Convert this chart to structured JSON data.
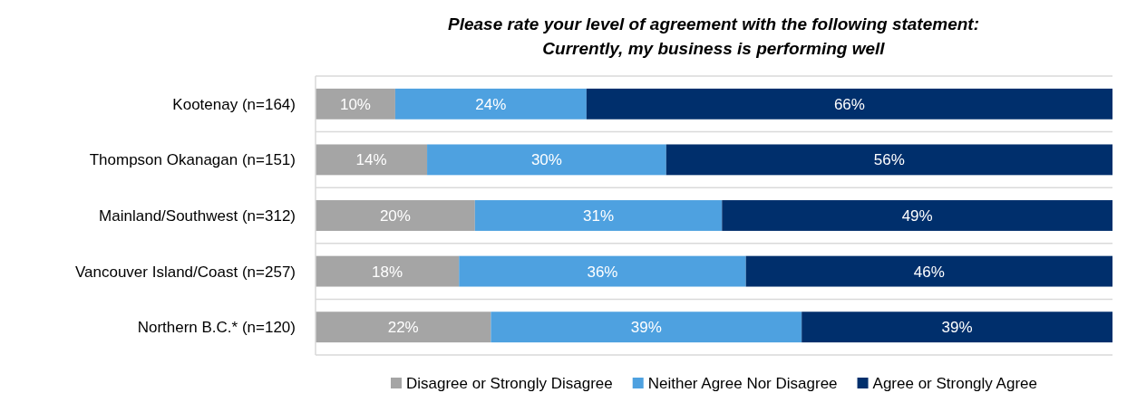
{
  "chart_data": {
    "type": "bar",
    "orientation": "horizontal",
    "stacked": true,
    "title": "Please rate your level of agreement with the following statement:\nCurrently, my business is performing well",
    "categories": [
      "Kootenay (n=164)",
      "Thompson Okanagan (n=151)",
      "Mainland/Southwest (n=312)",
      "Vancouver Island/Coast (n=257)",
      "Northern B.C.* (n=120)"
    ],
    "series": [
      {
        "name": "Disagree or Strongly Disagree",
        "color": "#a5a5a5",
        "values": [
          10,
          14,
          20,
          18,
          22
        ],
        "value_labels": [
          "10%",
          "14%",
          "20%",
          "18%",
          "22%"
        ]
      },
      {
        "name": "Neither Agree Nor Disagree",
        "color": "#4ea1e0",
        "values": [
          24,
          30,
          31,
          36,
          39
        ],
        "value_labels": [
          "24%",
          "30%",
          "31%",
          "36%",
          "39%"
        ]
      },
      {
        "name": "Agree or Strongly Agree",
        "color": "#002f6c",
        "values": [
          66,
          56,
          49,
          46,
          39
        ],
        "value_labels": [
          "66%",
          "56%",
          "49%",
          "46%",
          "39%"
        ]
      }
    ],
    "tick_labels": "y",
    "grid": "y",
    "legend": "bottom"
  }
}
